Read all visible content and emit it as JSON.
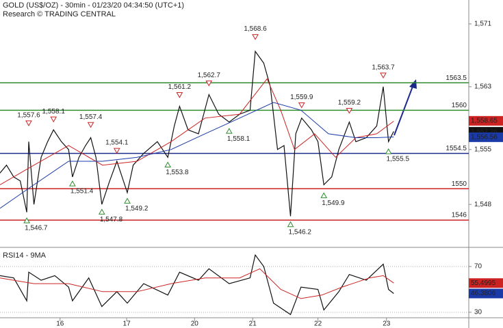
{
  "chart_data": [
    {
      "type": "line",
      "title": "GOLD (US$/OZ) - 30min - 01/23/20 04:34:50 (UTC+1)",
      "subtitle": "Research © TRADING CENTRAL",
      "xlim": [
        0,
        7.18
      ],
      "ylim": [
        1542.7,
        1574.05
      ],
      "yticks": [
        {
          "value": 1548,
          "label": "1,548"
        },
        {
          "value": 1555,
          "label": "1,555"
        },
        {
          "value": 1563,
          "label": "1,563"
        },
        {
          "value": 1571,
          "label": "1,571"
        }
      ],
      "series": [
        {
          "color": "#111111",
          "x": [
            0,
            0.1,
            0.21,
            0.31,
            0.41,
            0.44,
            0.52,
            0.63,
            0.73,
            0.82,
            0.94,
            1.05,
            1.11,
            1.21,
            1.31,
            1.39,
            1.47,
            1.56,
            1.68,
            1.79,
            1.95,
            2.04,
            2.2,
            2.41,
            2.57,
            2.67,
            2.75,
            2.88,
            3.04,
            3.2,
            3.35,
            3.51,
            3.67,
            3.83,
            3.91,
            4.04,
            4.14,
            4.25,
            4.35,
            4.45,
            4.53,
            4.62,
            4.77,
            4.87,
            4.96,
            5.08,
            5.19,
            5.35,
            5.45,
            5.61,
            5.77,
            5.87,
            5.95,
            6.03
          ],
          "values": [
            1552,
            1553,
            1551.5,
            1551,
            1547,
            1556,
            1548,
            1554,
            1556,
            1557.5,
            1556,
            1555,
            1551.5,
            1554,
            1555.5,
            1556.5,
            1554,
            1548,
            1551,
            1553.5,
            1549.5,
            1553,
            1554.5,
            1556,
            1554,
            1558,
            1560.5,
            1557.5,
            1557,
            1562,
            1559.5,
            1558.5,
            1559.5,
            1560,
            1567.5,
            1566,
            1563,
            1555,
            1555.5,
            1546.5,
            1557,
            1559,
            1557.5,
            1556,
            1550.5,
            1551.5,
            1555,
            1558.5,
            1556,
            1556.5,
            1558,
            1563,
            1556,
            1557.3
          ]
        },
        {
          "color": "#cc2222",
          "x": [
            0,
            0.52,
            1.05,
            1.57,
            2.1,
            2.62,
            3.14,
            3.67,
            4.09,
            4.3,
            4.51,
            4.82,
            5.14,
            5.45,
            5.77,
            6.03
          ],
          "values": [
            1550.5,
            1553,
            1555.5,
            1553,
            1553.5,
            1556,
            1559,
            1559.5,
            1564,
            1560,
            1555,
            1557,
            1554,
            1556.5,
            1557,
            1558.6
          ]
        },
        {
          "color": "#1a3aa8",
          "x": [
            0,
            0.52,
            1.05,
            1.57,
            2.1,
            2.62,
            3.14,
            3.67,
            4.19,
            4.61,
            5.03,
            5.45,
            5.77,
            6.03
          ],
          "values": [
            1547.5,
            1550.5,
            1553.5,
            1553.5,
            1554,
            1555,
            1557,
            1559,
            1561,
            1560,
            1557,
            1556.5,
            1556.5,
            1556.6
          ]
        }
      ],
      "levels": [
        {
          "value": 1563.5,
          "color": "#2e8b2e"
        },
        {
          "value": 1560,
          "color": "#2e8b2e"
        },
        {
          "value": 1554.5,
          "color": "#1a2a8a"
        },
        {
          "value": 1550,
          "color": "#cc2222"
        },
        {
          "value": 1546,
          "color": "#cc2222"
        }
      ],
      "highs": [
        {
          "x": 0.44,
          "value": 1557.6,
          "label": "1,557.6"
        },
        {
          "x": 0.82,
          "value": 1558.1,
          "label": "1,558.1"
        },
        {
          "x": 1.39,
          "value": 1557.4,
          "label": "1,557.4"
        },
        {
          "x": 1.79,
          "value": 1554.1,
          "label": "1,554.1"
        },
        {
          "x": 2.75,
          "value": 1561.2,
          "label": "1,561.2"
        },
        {
          "x": 3.2,
          "value": 1562.7,
          "label": "1,562.7"
        },
        {
          "x": 3.91,
          "value": 1568.6,
          "label": "1,568.6"
        },
        {
          "x": 4.62,
          "value": 1559.9,
          "label": "1,559.9"
        },
        {
          "x": 5.35,
          "value": 1559.2,
          "label": "1,559.2"
        },
        {
          "x": 5.87,
          "value": 1563.7,
          "label": "1,563.7"
        }
      ],
      "lows": [
        {
          "x": 0.41,
          "value": 1546.7,
          "label": "1,546.7"
        },
        {
          "x": 1.11,
          "value": 1551.4,
          "label": "1,551.4"
        },
        {
          "x": 1.56,
          "value": 1547.8,
          "label": "1,547.8"
        },
        {
          "x": 1.95,
          "value": 1549.2,
          "label": "1,549.2"
        },
        {
          "x": 2.57,
          "value": 1553.8,
          "label": "1,553.8"
        },
        {
          "x": 3.51,
          "value": 1558.1,
          "label": "1,558.1"
        },
        {
          "x": 4.45,
          "value": 1546.2,
          "label": "1,546.2"
        },
        {
          "x": 4.96,
          "value": 1549.9,
          "label": "1,549.9"
        },
        {
          "x": 5.95,
          "value": 1555.5,
          "label": "1,555.5"
        }
      ],
      "price_tags": [
        {
          "value": 1558.65,
          "label": "1,558.65",
          "color": "#cc2222"
        },
        {
          "value": 1557.26,
          "label": "1,557.26",
          "color": "#111111"
        },
        {
          "value": 1556.56,
          "label": "1,556.56",
          "color": "#1a3aa8"
        }
      ]
    },
    {
      "type": "line",
      "title": "RSI14 - 9MA",
      "xlim": [
        0,
        7.18
      ],
      "ylim": [
        25.2,
        84.9
      ],
      "yticks": [
        30,
        70
      ],
      "grid": true,
      "xticks": [
        {
          "value": 0.92,
          "label": "16"
        },
        {
          "value": 1.94,
          "label": "17"
        },
        {
          "value": 2.98,
          "label": "20"
        },
        {
          "value": 3.87,
          "label": "21"
        },
        {
          "value": 4.87,
          "label": "22"
        },
        {
          "value": 5.92,
          "label": "23"
        }
      ],
      "series": [
        {
          "color": "#111111",
          "x": [
            0,
            0.21,
            0.41,
            0.44,
            0.63,
            0.84,
            1.05,
            1.11,
            1.36,
            1.56,
            1.79,
            1.95,
            2.2,
            2.57,
            2.75,
            3.04,
            3.2,
            3.51,
            3.83,
            3.91,
            4.04,
            4.19,
            4.45,
            4.61,
            4.87,
            4.96,
            5.19,
            5.35,
            5.61,
            5.87,
            5.95,
            6.03
          ],
          "values": [
            62,
            60,
            40,
            65,
            58,
            62,
            52,
            40,
            60,
            35,
            48,
            38,
            55,
            45,
            65,
            58,
            68,
            55,
            60,
            80,
            70,
            38,
            28,
            52,
            50,
            32,
            48,
            63,
            58,
            72,
            50,
            46.38
          ]
        },
        {
          "color": "#cc2222",
          "x": [
            0,
            0.52,
            1.05,
            1.57,
            2.1,
            2.62,
            3.14,
            3.67,
            3.98,
            4.3,
            4.61,
            4.93,
            5.24,
            5.66,
            5.87,
            6.03
          ],
          "values": [
            60,
            55,
            55,
            48,
            48,
            55,
            60,
            60,
            68,
            50,
            42,
            45,
            52,
            60,
            62,
            55.5
          ]
        }
      ],
      "price_tags": [
        {
          "value": 55.4995,
          "label": "55.4995",
          "color": "#cc2222"
        },
        {
          "value": 46.3806,
          "label": "46.3806",
          "color": "#1a3aa8"
        }
      ]
    }
  ]
}
